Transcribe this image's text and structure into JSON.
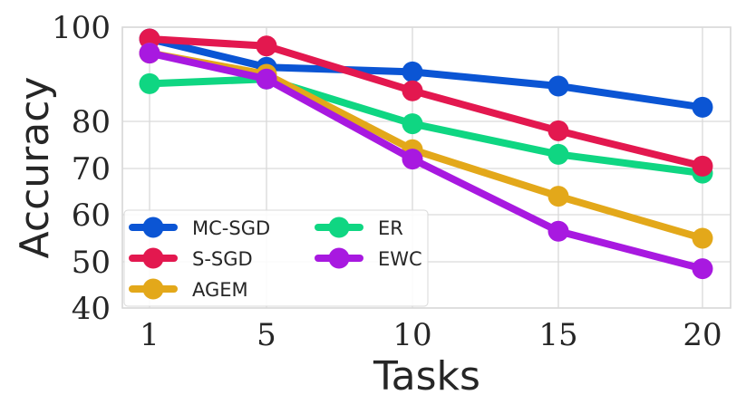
{
  "chart_data": {
    "type": "line",
    "title": "",
    "xlabel": "Tasks",
    "ylabel": "Accuracy",
    "x": [
      1,
      5,
      10,
      15,
      20
    ],
    "x_tick_labels": [
      "1",
      "5",
      "10",
      "15",
      "20"
    ],
    "y_ticks": [
      40,
      50,
      60,
      70,
      80,
      100
    ],
    "y_tick_labels": [
      "40",
      "50",
      "60",
      "70",
      "80",
      "100"
    ],
    "ylim": [
      40,
      100
    ],
    "grid": true,
    "legend_position": "lower-left",
    "series": [
      {
        "name": "MC-SGD",
        "color": "#0b55d4",
        "values": [
          97.5,
          91.5,
          90.5,
          87.5,
          83.0
        ]
      },
      {
        "name": "S-SGD",
        "color": "#e3184f",
        "values": [
          97.5,
          96.0,
          86.5,
          78.0,
          70.5
        ]
      },
      {
        "name": "AGEM",
        "color": "#e3a81a",
        "values": [
          94.5,
          90.0,
          74.0,
          64.0,
          55.0
        ]
      },
      {
        "name": "ER",
        "color": "#0fd682",
        "values": [
          88.0,
          89.0,
          79.5,
          73.0,
          69.0
        ]
      },
      {
        "name": "EWC",
        "color": "#a819e0",
        "values": [
          94.5,
          89.0,
          72.0,
          56.5,
          48.5
        ]
      }
    ],
    "legend_order": [
      0,
      3,
      1,
      4,
      2
    ]
  }
}
